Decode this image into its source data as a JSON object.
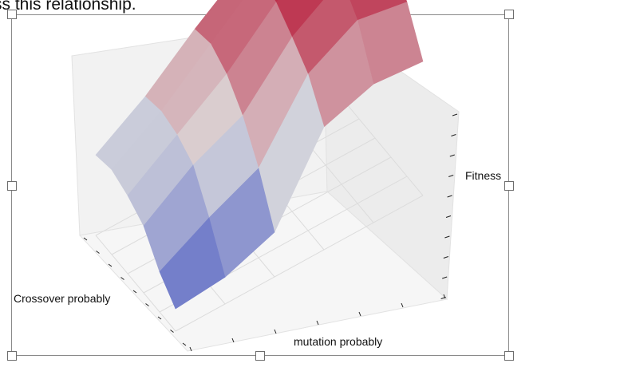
{
  "document": {
    "caption_fragment": "ss this relationship."
  },
  "chart_data": {
    "type": "surface",
    "title": "",
    "xlabel": "mutation probably",
    "ylabel": "Crossover probably",
    "zlabel": "Fitness",
    "colormap": "coolwarm",
    "x_index": [
      0,
      1,
      2,
      3,
      4,
      5
    ],
    "y_index": [
      0,
      1,
      2,
      3,
      4,
      5
    ],
    "z_relative": [
      [
        0.1,
        0.12,
        0.2,
        0.55,
        0.62,
        0.6
      ],
      [
        0.18,
        0.3,
        0.4,
        0.7,
        0.82,
        0.78
      ],
      [
        0.3,
        0.45,
        0.55,
        0.78,
        0.92,
        0.88
      ],
      [
        0.35,
        0.5,
        0.65,
        0.85,
        0.96,
        0.9
      ],
      [
        0.38,
        0.52,
        0.7,
        0.88,
        0.92,
        0.86
      ],
      [
        0.36,
        0.5,
        0.68,
        0.84,
        0.88,
        0.8
      ]
    ],
    "grid": true
  },
  "colors": {
    "frame_border": "#8a8a8a",
    "handle_fill": "#ffffff",
    "handle_border": "#6e6e6e",
    "pane": "#f2f2f2",
    "grid": "#dcdcdc",
    "low": "#3b4cc0",
    "high": "#b40426"
  }
}
